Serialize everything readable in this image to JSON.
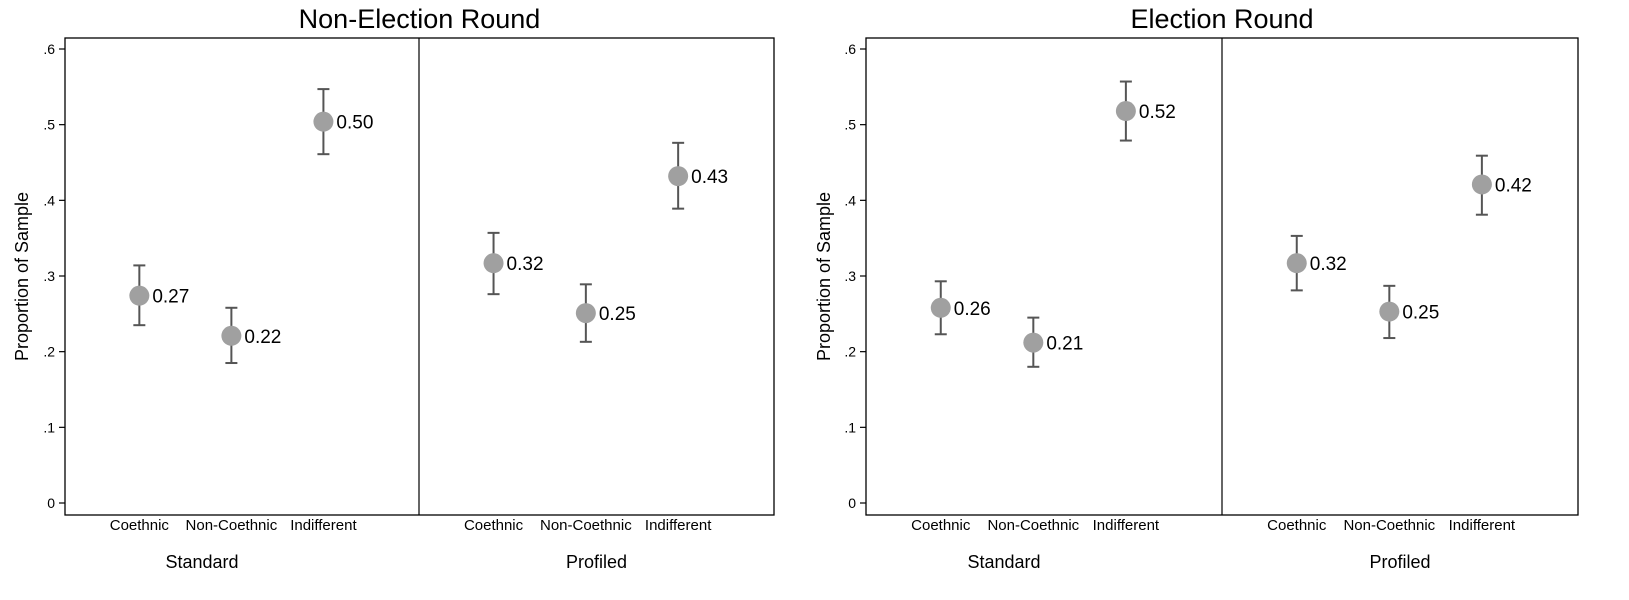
{
  "chart_data": [
    {
      "type": "scatter",
      "title": "Non-Election Round",
      "ylabel": "Proportion of Sample",
      "ylim": [
        0,
        0.6
      ],
      "yticks": [
        0,
        0.1,
        0.2,
        0.3,
        0.4,
        0.5,
        0.6
      ],
      "ytick_labels": [
        "0",
        ".1",
        ".2",
        ".3",
        ".4",
        ".5",
        ".6"
      ],
      "grid": false,
      "panels": [
        {
          "label": "Standard",
          "categories": [
            "Coethnic",
            "Non-Coethnic",
            "Indifferent"
          ],
          "values": [
            0.274,
            0.221,
            0.504
          ],
          "ci_low": [
            0.235,
            0.185,
            0.461
          ],
          "ci_high": [
            0.314,
            0.258,
            0.547
          ],
          "value_labels": [
            "0.27",
            "0.22",
            "0.50"
          ]
        },
        {
          "label": "Profiled",
          "categories": [
            "Coethnic",
            "Non-Coethnic",
            "Indifferent"
          ],
          "values": [
            0.317,
            0.251,
            0.432
          ],
          "ci_low": [
            0.276,
            0.213,
            0.389
          ],
          "ci_high": [
            0.357,
            0.289,
            0.476
          ],
          "value_labels": [
            "0.32",
            "0.25",
            "0.43"
          ]
        }
      ]
    },
    {
      "type": "scatter",
      "title": "Election Round",
      "ylabel": "Proportion of Sample",
      "ylim": [
        0,
        0.6
      ],
      "yticks": [
        0,
        0.1,
        0.2,
        0.3,
        0.4,
        0.5,
        0.6
      ],
      "ytick_labels": [
        "0",
        ".1",
        ".2",
        ".3",
        ".4",
        ".5",
        ".6"
      ],
      "grid": false,
      "panels": [
        {
          "label": "Standard",
          "categories": [
            "Coethnic",
            "Non-Coethnic",
            "Indifferent"
          ],
          "values": [
            0.258,
            0.212,
            0.518
          ],
          "ci_low": [
            0.223,
            0.18,
            0.479
          ],
          "ci_high": [
            0.293,
            0.245,
            0.557
          ],
          "value_labels": [
            "0.26",
            "0.21",
            "0.52"
          ]
        },
        {
          "label": "Profiled",
          "categories": [
            "Coethnic",
            "Non-Coethnic",
            "Indifferent"
          ],
          "values": [
            0.317,
            0.253,
            0.421
          ],
          "ci_low": [
            0.281,
            0.218,
            0.381
          ],
          "ci_high": [
            0.353,
            0.287,
            0.459
          ],
          "value_labels": [
            "0.32",
            "0.25",
            "0.42"
          ]
        }
      ]
    }
  ],
  "colors": {
    "point": "#a0a0a0",
    "error_bar": "#555555",
    "frame": "#000000"
  }
}
